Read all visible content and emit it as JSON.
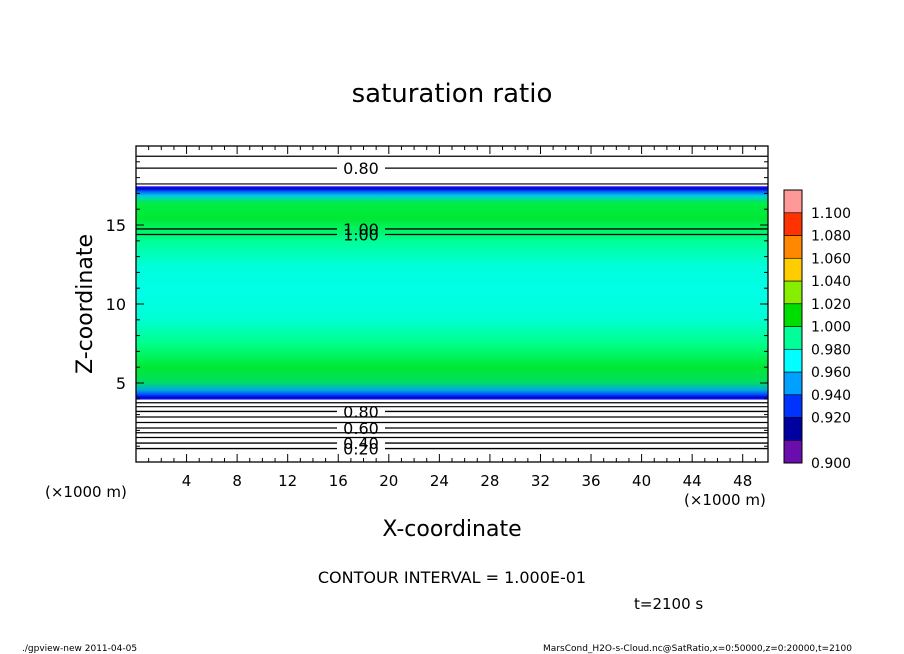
{
  "chart_data": {
    "type": "heatmap",
    "title": "saturation ratio",
    "xlabel": "X-coordinate",
    "ylabel": "Z-coordinate",
    "x_unit_left": "(×1000 m)",
    "x_unit_right": "(×1000 m)",
    "xlim": [
      0,
      50
    ],
    "ylim": [
      0,
      20
    ],
    "x_ticks": [
      4,
      8,
      12,
      16,
      20,
      24,
      28,
      32,
      36,
      40,
      44,
      48
    ],
    "y_ticks": [
      5,
      10,
      15
    ],
    "colorbar": {
      "levels": [
        "0.900",
        "0.920",
        "0.940",
        "0.960",
        "0.980",
        "1.000",
        "1.020",
        "1.040",
        "1.060",
        "1.080",
        "1.100"
      ],
      "colors": [
        "#6a0dad",
        "#0000a0",
        "#0033ff",
        "#00a0ff",
        "#00ffff",
        "#00ff99",
        "#00dd00",
        "#88ee00",
        "#ffcc00",
        "#ff8800",
        "#ff3300",
        "#ff9999"
      ]
    },
    "contours": [
      {
        "z": 0.85,
        "label": "0.20",
        "show_label": true
      },
      {
        "z": 1.2,
        "label": "0.40",
        "show_label": true
      },
      {
        "z": 1.55,
        "label": "",
        "show_label": false
      },
      {
        "z": 1.85,
        "label": "",
        "show_label": false
      },
      {
        "z": 2.15,
        "label": "0.60",
        "show_label": true
      },
      {
        "z": 2.5,
        "label": "",
        "show_label": false
      },
      {
        "z": 2.85,
        "label": "",
        "show_label": false
      },
      {
        "z": 3.2,
        "label": "0.80",
        "show_label": true
      },
      {
        "z": 3.5,
        "label": "",
        "show_label": false
      },
      {
        "z": 3.75,
        "label": "",
        "show_label": false
      },
      {
        "z": 14.4,
        "label": "1.00",
        "show_label": true
      },
      {
        "z": 14.75,
        "label": "1.00",
        "show_label": true
      },
      {
        "z": 17.6,
        "label": "",
        "show_label": false
      },
      {
        "z": 18.6,
        "label": "0.80",
        "show_label": true
      },
      {
        "z": 19.35,
        "label": "",
        "show_label": false
      }
    ],
    "contour_interval_text": "CONTOUR INTERVAL = 1.000E-01",
    "time_text": "t=2100 s",
    "cloud_band": {
      "z_bottom": 3.95,
      "z_top": 17.45
    }
  },
  "footer": {
    "left": "./gpview-new   2011-04-05",
    "right": "MarsCond_H2O-s-Cloud.nc@SatRatio,x=0:50000,z=0:20000,t=2100"
  }
}
